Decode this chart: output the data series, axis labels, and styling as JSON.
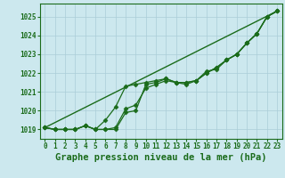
{
  "title": "Graphe pression niveau de la mer (hPa)",
  "bg_color": "#cce8ee",
  "grid_color": "#aacdd8",
  "line_color": "#1a6b1a",
  "xmin": -0.5,
  "xmax": 23.5,
  "ymin": 1018.5,
  "ymax": 1025.7,
  "yticks": [
    1019,
    1020,
    1021,
    1022,
    1023,
    1024,
    1025
  ],
  "xticks": [
    0,
    1,
    2,
    3,
    4,
    5,
    6,
    7,
    8,
    9,
    10,
    11,
    12,
    13,
    14,
    15,
    16,
    17,
    18,
    19,
    20,
    21,
    22,
    23
  ],
  "series": [
    {
      "x": [
        0,
        1,
        2,
        3,
        4,
        5,
        6,
        7,
        8,
        9,
        10,
        11,
        12,
        13,
        14,
        15,
        16,
        17,
        18,
        19,
        20,
        21,
        22,
        23
      ],
      "y": [
        1019.1,
        1019.0,
        1019.0,
        1019.0,
        1019.2,
        1019.0,
        1019.0,
        1019.0,
        1019.9,
        1020.0,
        1021.4,
        1021.5,
        1021.7,
        1021.5,
        1021.5,
        1021.6,
        1022.1,
        1022.2,
        1022.7,
        1023.0,
        1023.6,
        1024.1,
        1025.0,
        1025.3
      ],
      "marker": "D",
      "markersize": 2.5,
      "linewidth": 0.9
    },
    {
      "x": [
        0,
        1,
        2,
        3,
        4,
        5,
        6,
        7,
        8,
        9,
        10,
        11,
        12,
        13,
        14,
        15,
        16,
        17,
        18,
        19,
        20,
        21,
        22,
        23
      ],
      "y": [
        1019.1,
        1019.0,
        1019.0,
        1019.0,
        1019.2,
        1019.0,
        1019.5,
        1020.2,
        1021.3,
        1021.4,
        1021.5,
        1021.6,
        1021.7,
        1021.5,
        1021.4,
        1021.6,
        1022.0,
        1022.3,
        1022.7,
        1023.0,
        1023.6,
        1024.1,
        1025.0,
        1025.3
      ],
      "marker": "D",
      "markersize": 2.5,
      "linewidth": 0.9
    },
    {
      "x": [
        0,
        1,
        2,
        3,
        4,
        5,
        6,
        7,
        8,
        9,
        10,
        11,
        12,
        13,
        14,
        15,
        16,
        17,
        18,
        19,
        20,
        21,
        22,
        23
      ],
      "y": [
        1019.1,
        1019.0,
        1019.0,
        1019.0,
        1019.2,
        1019.0,
        1019.0,
        1019.1,
        1020.1,
        1020.3,
        1021.2,
        1021.4,
        1021.6,
        1021.5,
        1021.5,
        1021.6,
        1022.0,
        1022.3,
        1022.7,
        1023.0,
        1023.6,
        1024.1,
        1025.0,
        1025.3
      ],
      "marker": "D",
      "markersize": 2.5,
      "linewidth": 0.9
    },
    {
      "x": [
        0,
        23
      ],
      "y": [
        1019.1,
        1025.3
      ],
      "marker": null,
      "markersize": 0,
      "linewidth": 1.0
    }
  ],
  "tick_fontsize": 5.5,
  "title_fontsize": 7.5
}
